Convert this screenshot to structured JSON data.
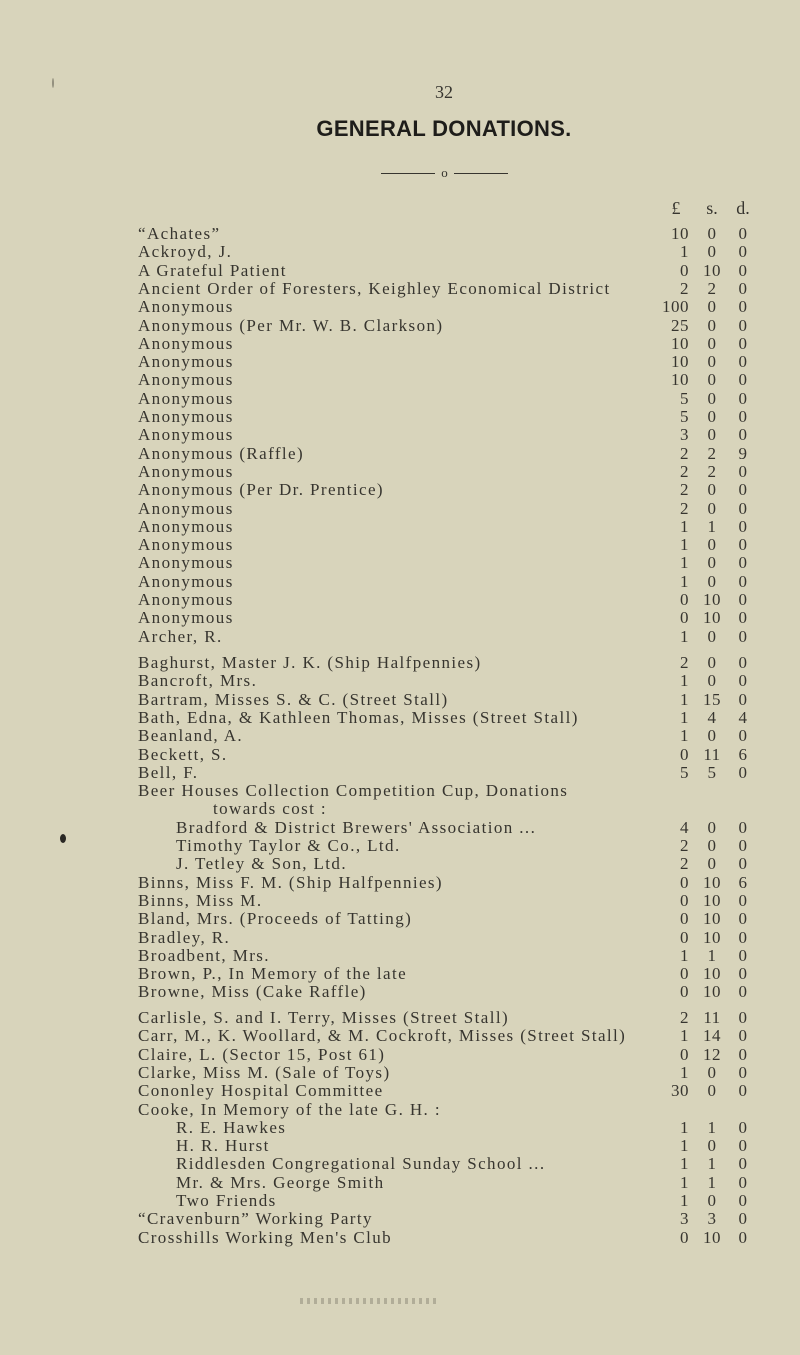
{
  "page_number": "32",
  "title": "GENERAL DONATIONS.",
  "separator": "o",
  "columns": {
    "pounds": "£",
    "shillings": "s.",
    "pence": "d."
  },
  "groups": [
    {
      "rows": [
        {
          "name": "“Achates”",
          "indent": 0,
          "amount": [
            "10",
            "0",
            "0"
          ]
        },
        {
          "name": "Ackroyd, J.",
          "indent": 0,
          "amount": [
            "1",
            "0",
            "0"
          ]
        },
        {
          "name": "A Grateful Patient",
          "indent": 0,
          "amount": [
            "0",
            "10",
            "0"
          ]
        },
        {
          "name": "Ancient Order of Foresters, Keighley Economical District",
          "indent": 0,
          "amount": [
            "2",
            "2",
            "0"
          ]
        },
        {
          "name": "Anonymous",
          "indent": 0,
          "amount": [
            "100",
            "0",
            "0"
          ]
        },
        {
          "name": "Anonymous (Per Mr. W. B. Clarkson)",
          "indent": 0,
          "amount": [
            "25",
            "0",
            "0"
          ]
        },
        {
          "name": "Anonymous",
          "indent": 0,
          "amount": [
            "10",
            "0",
            "0"
          ]
        },
        {
          "name": "Anonymous",
          "indent": 0,
          "amount": [
            "10",
            "0",
            "0"
          ]
        },
        {
          "name": "Anonymous",
          "indent": 0,
          "amount": [
            "10",
            "0",
            "0"
          ]
        },
        {
          "name": "Anonymous",
          "indent": 0,
          "amount": [
            "5",
            "0",
            "0"
          ]
        },
        {
          "name": "Anonymous",
          "indent": 0,
          "amount": [
            "5",
            "0",
            "0"
          ]
        },
        {
          "name": "Anonymous",
          "indent": 0,
          "amount": [
            "3",
            "0",
            "0"
          ]
        },
        {
          "name": "Anonymous (Raffle)",
          "indent": 0,
          "amount": [
            "2",
            "2",
            "9"
          ]
        },
        {
          "name": "Anonymous",
          "indent": 0,
          "amount": [
            "2",
            "2",
            "0"
          ]
        },
        {
          "name": "Anonymous (Per Dr. Prentice)",
          "indent": 0,
          "amount": [
            "2",
            "0",
            "0"
          ]
        },
        {
          "name": "Anonymous",
          "indent": 0,
          "amount": [
            "2",
            "0",
            "0"
          ]
        },
        {
          "name": "Anonymous",
          "indent": 0,
          "amount": [
            "1",
            "1",
            "0"
          ]
        },
        {
          "name": "Anonymous",
          "indent": 0,
          "amount": [
            "1",
            "0",
            "0"
          ]
        },
        {
          "name": "Anonymous",
          "indent": 0,
          "amount": [
            "1",
            "0",
            "0"
          ]
        },
        {
          "name": "Anonymous",
          "indent": 0,
          "amount": [
            "1",
            "0",
            "0"
          ]
        },
        {
          "name": "Anonymous",
          "indent": 0,
          "amount": [
            "0",
            "10",
            "0"
          ]
        },
        {
          "name": "Anonymous",
          "indent": 0,
          "amount": [
            "0",
            "10",
            "0"
          ]
        },
        {
          "name": "Archer, R.",
          "indent": 0,
          "amount": [
            "1",
            "0",
            "0"
          ]
        }
      ]
    },
    {
      "rows": [
        {
          "name": "Baghurst, Master J. K. (Ship Halfpennies)",
          "indent": 0,
          "amount": [
            "2",
            "0",
            "0"
          ]
        },
        {
          "name": "Bancroft, Mrs.",
          "indent": 0,
          "amount": [
            "1",
            "0",
            "0"
          ]
        },
        {
          "name": "Bartram, Misses S. & C. (Street Stall)",
          "indent": 0,
          "amount": [
            "1",
            "15",
            "0"
          ]
        },
        {
          "name": "Bath, Edna, & Kathleen Thomas, Misses (Street Stall)",
          "indent": 0,
          "amount": [
            "1",
            "4",
            "4"
          ]
        },
        {
          "name": "Beanland, A.",
          "indent": 0,
          "amount": [
            "1",
            "0",
            "0"
          ]
        },
        {
          "name": "Beckett, S.",
          "indent": 0,
          "amount": [
            "0",
            "11",
            "6"
          ]
        },
        {
          "name": "Bell, F.",
          "indent": 0,
          "amount": [
            "5",
            "5",
            "0"
          ]
        },
        {
          "name": "Beer Houses Collection Competition Cup, Donations",
          "indent": 0,
          "amount": null
        },
        {
          "name": "towards cost :",
          "indent": 2,
          "amount": null
        },
        {
          "name": "Bradford & District Brewers' Association ...",
          "indent": 1,
          "amount": [
            "4",
            "0",
            "0"
          ]
        },
        {
          "name": "Timothy Taylor & Co., Ltd.",
          "indent": 1,
          "amount": [
            "2",
            "0",
            "0"
          ]
        },
        {
          "name": "J. Tetley & Son, Ltd.",
          "indent": 1,
          "amount": [
            "2",
            "0",
            "0"
          ]
        },
        {
          "name": "Binns, Miss F. M. (Ship Halfpennies)",
          "indent": 0,
          "amount": [
            "0",
            "10",
            "6"
          ]
        },
        {
          "name": "Binns, Miss M.",
          "indent": 0,
          "amount": [
            "0",
            "10",
            "0"
          ]
        },
        {
          "name": "Bland, Mrs. (Proceeds of Tatting)",
          "indent": 0,
          "amount": [
            "0",
            "10",
            "0"
          ]
        },
        {
          "name": "Bradley, R.",
          "indent": 0,
          "amount": [
            "0",
            "10",
            "0"
          ]
        },
        {
          "name": "Broadbent, Mrs.",
          "indent": 0,
          "amount": [
            "1",
            "1",
            "0"
          ]
        },
        {
          "name": "Brown, P., In Memory of the late",
          "indent": 0,
          "amount": [
            "0",
            "10",
            "0"
          ]
        },
        {
          "name": "Browne, Miss (Cake Raffle)",
          "indent": 0,
          "amount": [
            "0",
            "10",
            "0"
          ]
        }
      ]
    },
    {
      "rows": [
        {
          "name": "Carlisle, S. and I. Terry, Misses (Street Stall)",
          "indent": 0,
          "amount": [
            "2",
            "11",
            "0"
          ]
        },
        {
          "name": "Carr, M., K. Woollard, & M. Cockroft, Misses (Street Stall)",
          "indent": 0,
          "amount": [
            "1",
            "14",
            "0"
          ]
        },
        {
          "name": "Claire, L. (Sector 15, Post 61)",
          "indent": 0,
          "amount": [
            "0",
            "12",
            "0"
          ]
        },
        {
          "name": "Clarke, Miss M. (Sale of Toys)",
          "indent": 0,
          "amount": [
            "1",
            "0",
            "0"
          ]
        },
        {
          "name": "Cononley Hospital Committee",
          "indent": 0,
          "amount": [
            "30",
            "0",
            "0"
          ]
        },
        {
          "name": "Cooke, In Memory of the late G. H. :",
          "indent": 0,
          "amount": null
        },
        {
          "name": "R. E. Hawkes",
          "indent": 1,
          "amount": [
            "1",
            "1",
            "0"
          ]
        },
        {
          "name": "H. R. Hurst",
          "indent": 1,
          "amount": [
            "1",
            "0",
            "0"
          ]
        },
        {
          "name": "Riddlesden Congregational Sunday School ...",
          "indent": 1,
          "amount": [
            "1",
            "1",
            "0"
          ]
        },
        {
          "name": "Mr. & Mrs. George Smith",
          "indent": 1,
          "amount": [
            "1",
            "1",
            "0"
          ]
        },
        {
          "name": "Two Friends",
          "indent": 1,
          "amount": [
            "1",
            "0",
            "0"
          ]
        },
        {
          "name": "“Cravenburn” Working Party",
          "indent": 0,
          "amount": [
            "3",
            "3",
            "0"
          ]
        },
        {
          "name": "Crosshills Working Men's Club",
          "indent": 0,
          "amount": [
            "0",
            "10",
            "0"
          ]
        }
      ]
    }
  ]
}
